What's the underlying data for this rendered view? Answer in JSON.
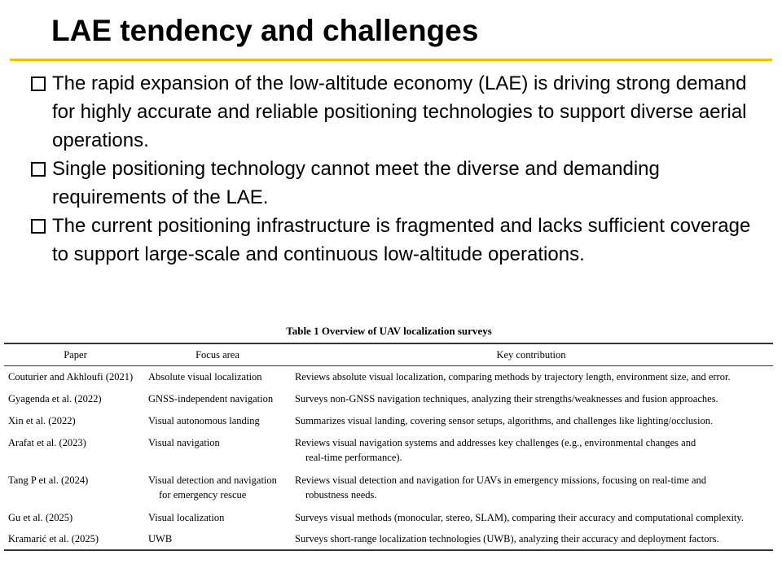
{
  "slide": {
    "title": "LAE tendency and challenges",
    "accent_color": "#f2c200",
    "bullet_icon": "hollow-square-icon",
    "bullets": [
      "The rapid expansion of the low-altitude economy (LAE) is driving strong demand for highly accurate and reliable positioning technologies to support diverse aerial operations.",
      "Single positioning technology cannot meet the diverse and demanding requirements of the LAE.",
      "The current positioning infrastructure is fragmented and lacks sufficient coverage to support large-scale and continuous low-altitude operations."
    ]
  },
  "table": {
    "caption": "Table 1  Overview of UAV localization surveys",
    "headers": [
      "Paper",
      "Focus area",
      "Key contribution"
    ],
    "rows": [
      {
        "paper": "Couturier and Akhloufi (2021)",
        "focus": [
          "Absolute visual localization"
        ],
        "contribution": [
          "Reviews absolute visual localization, comparing methods by trajectory length, environment size, and error."
        ]
      },
      {
        "paper": "Gyagenda et al. (2022)",
        "focus": [
          "GNSS-independent navigation"
        ],
        "contribution": [
          "Surveys non-GNSS navigation techniques, analyzing their strengths/weaknesses and fusion approaches."
        ]
      },
      {
        "paper": "Xin et al. (2022)",
        "focus": [
          "Visual autonomous landing"
        ],
        "contribution": [
          "Summarizes visual landing, covering sensor setups, algorithms, and challenges like lighting/occlusion."
        ]
      },
      {
        "paper": "Arafat et al. (2023)",
        "focus": [
          "Visual navigation"
        ],
        "contribution": [
          "Reviews visual navigation systems and addresses key challenges (e.g., environmental changes and",
          "real-time performance)."
        ]
      },
      {
        "paper": "Tang P et al. (2024)",
        "focus": [
          "Visual detection and navigation",
          "for emergency rescue"
        ],
        "contribution": [
          "Reviews visual detection and navigation for UAVs in emergency missions, focusing on real-time and",
          "robustness needs."
        ]
      },
      {
        "paper": "Gu et al. (2025)",
        "focus": [
          "Visual localization"
        ],
        "contribution": [
          "Surveys visual methods (monocular, stereo, SLAM), comparing their accuracy and computational complexity."
        ]
      },
      {
        "paper": "Kramarić et al. (2025)",
        "focus": [
          "UWB"
        ],
        "contribution": [
          "Surveys short-range localization technologies (UWB), analyzing their accuracy and deployment factors."
        ]
      }
    ]
  }
}
